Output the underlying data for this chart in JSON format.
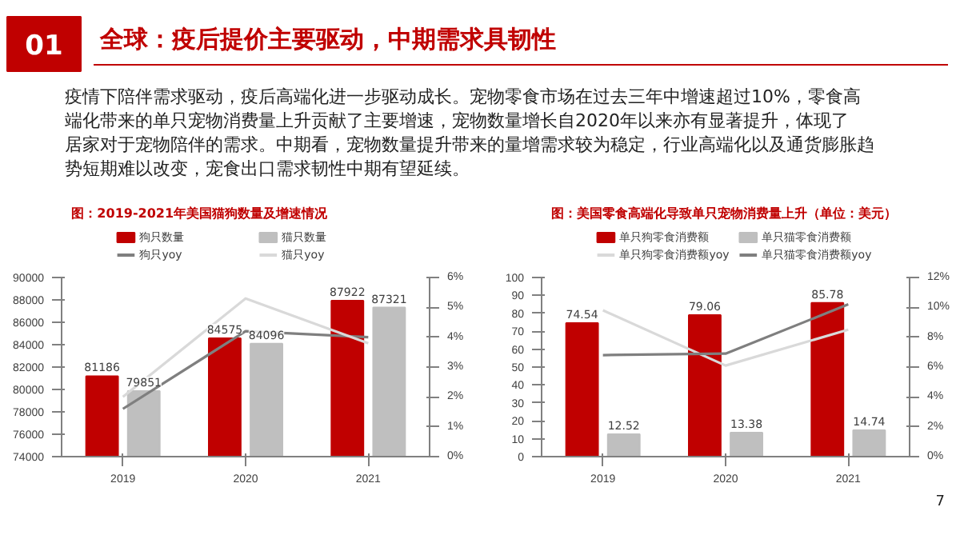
{
  "chart_data": [
    {
      "type": "bar",
      "title": "图：2019-2021年美国猫狗数量及增速情况",
      "categories": [
        "2019",
        "2020",
        "2021"
      ],
      "annotations": [
        "01",
        "全球：疫后提价主要驱动，中期需求具韧性",
        "疫情下陪伴需求驱动，疫后高端化进一步驱动成长。宠物零食市场在过去三年中增速超过10%，零食高端化带来的单只宠物消费量上升贡献了主要增速，宠物数量增长自2020年以来亦有显著提升，体现了居家对于宠物陪伴的需求。中期看，宠物数量提升带来的量增需求较为稳定，行业高端化以及通货膨胀趋势短期难以改变，宠食出口需求韧性中期有望延续。",
        "7"
      ],
      "series": [
        {
          "name": "狗只数量",
          "color": "#c00000",
          "values": [
            81186,
            84575,
            87922
          ],
          "value_labels": [
            "81186",
            "84575",
            "87922"
          ]
        },
        {
          "name": "猫只数量",
          "color": "#bfbfbf",
          "values": [
            79851,
            84096,
            87321
          ],
          "value_labels": [
            "79851",
            "84096",
            "87321"
          ]
        },
        {
          "name": "狗只yoy",
          "type": "line",
          "axis": "y2",
          "color": "#7f7f7f",
          "values": [
            1.6,
            4.2,
            4.0
          ]
        },
        {
          "name": "猫只yoy",
          "type": "line",
          "axis": "y2",
          "color": "#d9d9d9",
          "values": [
            2.0,
            5.3,
            3.8
          ]
        }
      ],
      "ylim": [
        74000,
        90000
      ],
      "yticks": [
        74000,
        76000,
        78000,
        80000,
        82000,
        84000,
        86000,
        88000,
        90000
      ],
      "y2lim": [
        0,
        6
      ],
      "y2ticks": [
        {
          "value": 0,
          "label": "0%"
        },
        {
          "value": 1,
          "label": "1%"
        },
        {
          "value": 2,
          "label": "2%"
        },
        {
          "value": 3,
          "label": "3%"
        },
        {
          "value": 4,
          "label": "4%"
        },
        {
          "value": 5,
          "label": "5%"
        },
        {
          "value": 6,
          "label": "6%"
        }
      ],
      "legend": "top",
      "grid": false
    },
    {
      "type": "bar",
      "title": "图：美国零食高端化导致单只宠物消费量上升（单位：美元）",
      "categories": [
        "2019",
        "2020",
        "2021"
      ],
      "series": [
        {
          "name": "单只狗零食消费额",
          "color": "#c00000",
          "values": [
            74.54,
            79.06,
            85.78
          ],
          "value_labels": [
            "74.54",
            "79.06",
            "85.78"
          ]
        },
        {
          "name": "单只猫零食消费额",
          "color": "#bfbfbf",
          "values": [
            12.52,
            13.38,
            14.74
          ],
          "value_labels": [
            "12.52",
            "13.38",
            "14.74"
          ]
        },
        {
          "name": "单只狗零食消费额yoy",
          "type": "line",
          "axis": "y2",
          "color": "#d9d9d9",
          "values": [
            9.8,
            6.1,
            8.5
          ]
        },
        {
          "name": "单只猫零食消费额yoy",
          "type": "line",
          "axis": "y2",
          "color": "#7f7f7f",
          "values": [
            6.8,
            6.9,
            10.2
          ]
        }
      ],
      "ylim": [
        0,
        100
      ],
      "yticks": [
        0,
        10,
        20,
        30,
        40,
        50,
        60,
        70,
        80,
        90,
        100
      ],
      "y2lim": [
        0,
        12
      ],
      "y2ticks": [
        {
          "value": 0,
          "label": "0%"
        },
        {
          "value": 2,
          "label": "2%"
        },
        {
          "value": 4,
          "label": "4%"
        },
        {
          "value": 6,
          "label": "6%"
        },
        {
          "value": 8,
          "label": "8%"
        },
        {
          "value": 10,
          "label": "10%"
        },
        {
          "value": 12,
          "label": "12%"
        }
      ],
      "legend": "top",
      "grid": false
    }
  ]
}
